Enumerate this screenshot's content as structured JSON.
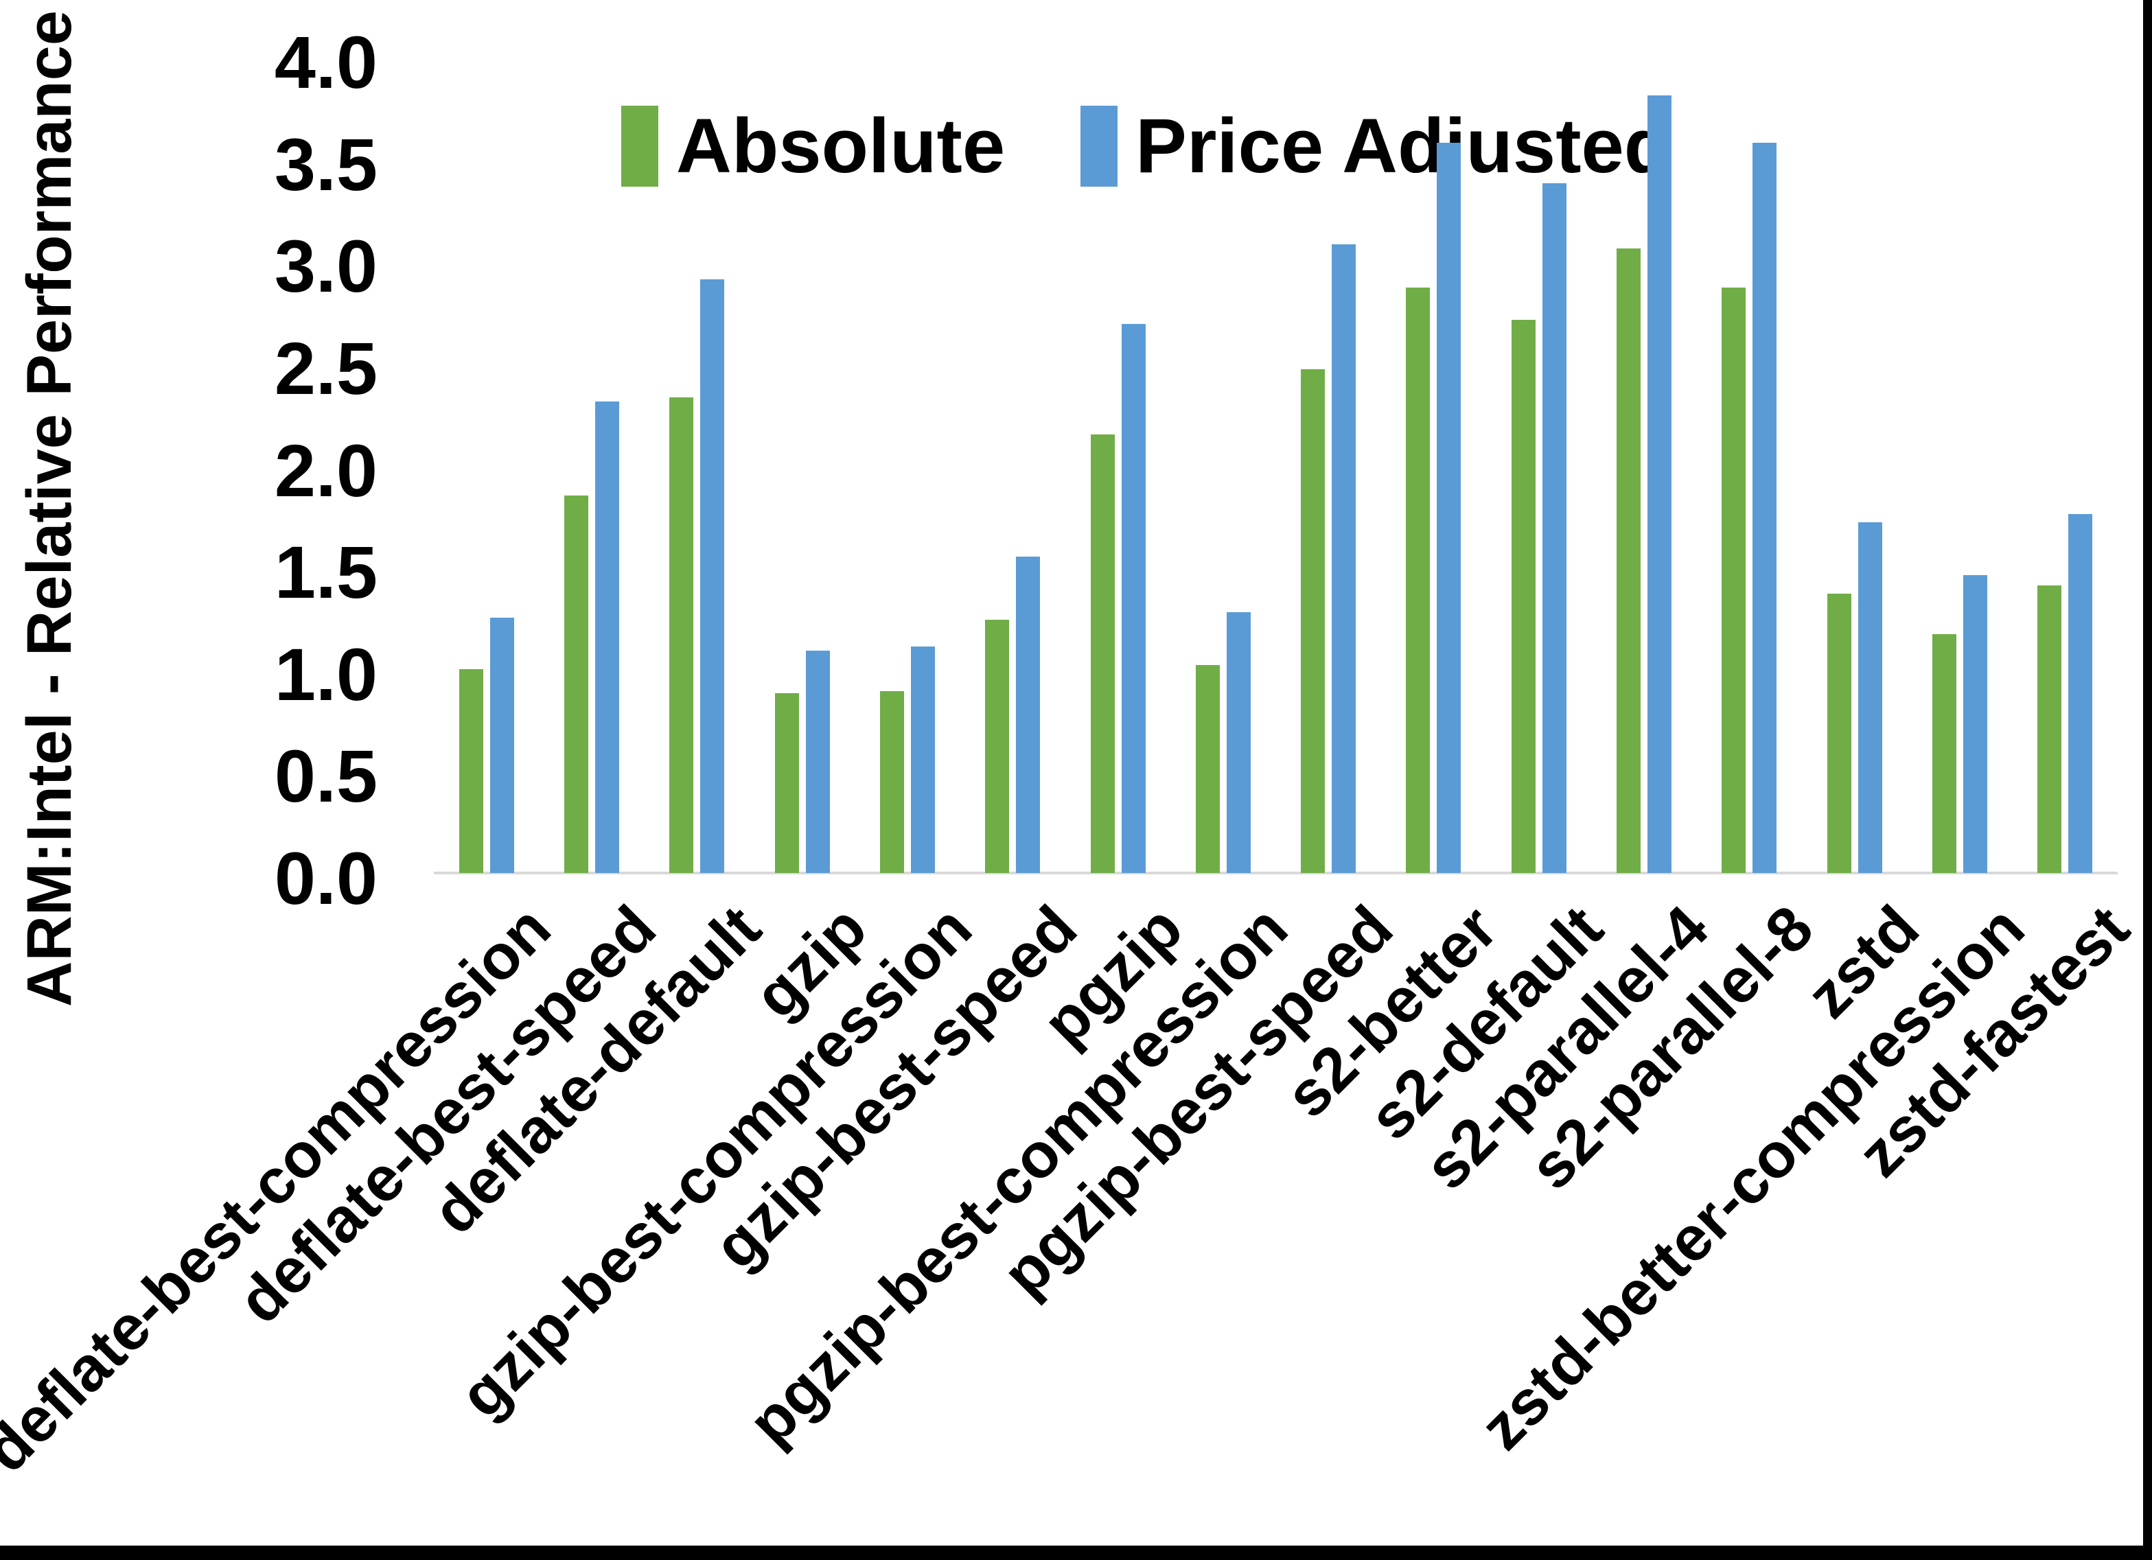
{
  "colors": {
    "absolute": "#70AD47",
    "price_adjusted": "#5B9BD5",
    "axis_line": "#D9D9D9",
    "text": "#000000",
    "frame": "#000000",
    "background": "#FFFFFF"
  },
  "legend": {
    "items": [
      {
        "label": "Absolute",
        "swatch": "green-swatch"
      },
      {
        "label": "Price Adjusted",
        "swatch": "blue-swatch"
      }
    ]
  },
  "y_axis": {
    "title": "ARM:Intel - Relative Performance",
    "tick_labels": [
      "0.0",
      "0.5",
      "1.0",
      "1.5",
      "2.0",
      "2.5",
      "3.0",
      "3.5",
      "4.0"
    ]
  },
  "chart_data": {
    "type": "bar",
    "title": "",
    "xlabel": "",
    "ylabel": "ARM:Intel - Relative Performance",
    "ylim": [
      0.0,
      4.0
    ],
    "ytick_step": 0.5,
    "grid": false,
    "legend_position": "top",
    "categories": [
      "deflate-best-compression",
      "deflate-best-speed",
      "deflate-default",
      "gzip",
      "gzip-best-compression",
      "gzip-best-speed",
      "pgzip",
      "pgzip-best-compression",
      "pgzip-best-speed",
      "s2-better",
      "s2-default",
      "s2-parallel-4",
      "s2-parallel-8",
      "zstd",
      "zstd-better-compression",
      "zstd-fastest"
    ],
    "series": [
      {
        "name": "Absolute",
        "color": "#70AD47",
        "values": [
          1.0,
          1.85,
          2.33,
          0.88,
          0.89,
          1.24,
          2.15,
          1.02,
          2.47,
          2.87,
          2.71,
          3.06,
          2.87,
          1.37,
          1.17,
          1.41
        ]
      },
      {
        "name": "Price Adjusted",
        "color": "#5B9BD5",
        "values": [
          1.25,
          2.31,
          2.91,
          1.09,
          1.11,
          1.55,
          2.69,
          1.28,
          3.08,
          3.58,
          3.38,
          3.81,
          3.58,
          1.72,
          1.46,
          1.76
        ]
      }
    ]
  }
}
